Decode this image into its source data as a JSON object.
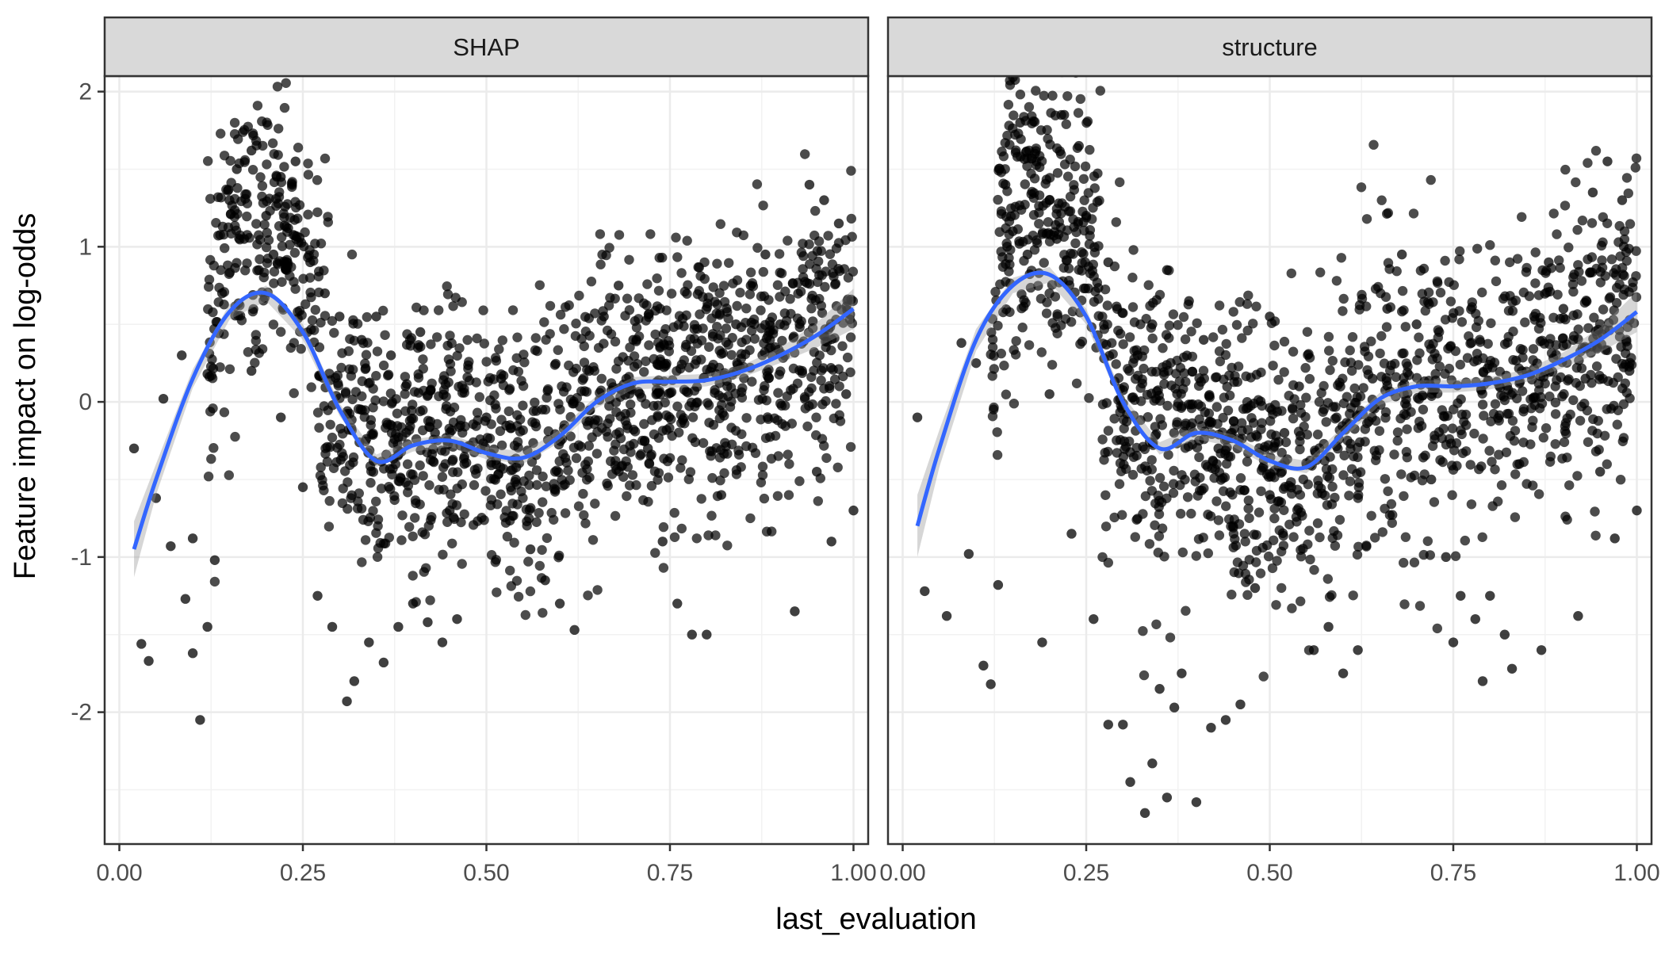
{
  "chart_data": {
    "type": "scatter",
    "xlabel": "last_evaluation",
    "ylabel": "Feature impact on log-odds",
    "xlim": [
      -0.02,
      1.02
    ],
    "ylim": [
      -2.85,
      2.1
    ],
    "x_ticks": [
      0.0,
      0.25,
      0.5,
      0.75,
      1.0
    ],
    "x_tick_labels": [
      "0.00",
      "0.25",
      "0.50",
      "0.75",
      "1.00"
    ],
    "y_ticks": [
      -2,
      -1,
      0,
      1,
      2
    ],
    "y_tick_labels": [
      "-2",
      "-1",
      "0",
      "1",
      "2"
    ],
    "grid": true,
    "point_color": "#000000",
    "smooth_color": "#3366FF",
    "band_color": "#999999",
    "strip_fill": "#D9D9D9",
    "panels": [
      {
        "strip_label": "SHAP",
        "smooth_x": [
          0.02,
          0.05,
          0.1,
          0.15,
          0.2,
          0.25,
          0.3,
          0.35,
          0.4,
          0.45,
          0.5,
          0.55,
          0.6,
          0.65,
          0.7,
          0.75,
          0.8,
          0.85,
          0.9,
          0.95,
          1.0
        ],
        "smooth_y": [
          -0.95,
          -0.5,
          0.15,
          0.58,
          0.7,
          0.45,
          -0.05,
          -0.38,
          -0.28,
          -0.25,
          -0.33,
          -0.36,
          -0.22,
          0.0,
          0.12,
          0.13,
          0.14,
          0.2,
          0.3,
          0.43,
          0.6
        ],
        "band_halfwidth": [
          0.18,
          0.1,
          0.06,
          0.05,
          0.05,
          0.05,
          0.04,
          0.04,
          0.04,
          0.04,
          0.04,
          0.04,
          0.04,
          0.04,
          0.04,
          0.04,
          0.04,
          0.04,
          0.05,
          0.08,
          0.13
        ],
        "points": [
          [
            0.02,
            -0.3
          ],
          [
            0.03,
            -1.56
          ],
          [
            0.04,
            -1.67
          ],
          [
            0.05,
            -0.62
          ],
          [
            0.06,
            0.02
          ],
          [
            0.07,
            -0.93
          ],
          [
            0.09,
            -1.27
          ],
          [
            0.1,
            -1.62
          ],
          [
            0.11,
            -2.05
          ],
          [
            0.12,
            -1.45
          ],
          [
            0.085,
            0.3
          ],
          [
            0.1,
            -0.88
          ],
          [
            0.13,
            -1.02
          ],
          [
            0.12,
            0.18
          ],
          [
            0.14,
            0.7
          ],
          [
            0.16,
            1.5
          ],
          [
            0.18,
            1.62
          ],
          [
            0.2,
            1.2
          ],
          [
            0.22,
            1.45
          ],
          [
            0.24,
            1.55
          ],
          [
            0.15,
            1.3
          ],
          [
            0.17,
            1.05
          ],
          [
            0.19,
            0.85
          ],
          [
            0.21,
            0.95
          ],
          [
            0.23,
            1.12
          ],
          [
            0.26,
            0.9
          ],
          [
            0.28,
            0.7
          ],
          [
            0.3,
            0.55
          ],
          [
            0.18,
            0.2
          ],
          [
            0.22,
            -0.1
          ],
          [
            0.25,
            -0.55
          ],
          [
            0.27,
            -1.25
          ],
          [
            0.29,
            -1.45
          ],
          [
            0.31,
            -1.93
          ],
          [
            0.32,
            -1.8
          ],
          [
            0.34,
            -1.55
          ],
          [
            0.36,
            -1.68
          ],
          [
            0.38,
            -1.45
          ],
          [
            0.4,
            -1.3
          ],
          [
            0.42,
            -1.42
          ],
          [
            0.44,
            -1.55
          ],
          [
            0.46,
            -1.4
          ],
          [
            0.33,
            0.4
          ],
          [
            0.35,
            0.55
          ],
          [
            0.37,
            0.3
          ],
          [
            0.39,
            0.1
          ],
          [
            0.41,
            0.45
          ],
          [
            0.43,
            -0.2
          ],
          [
            0.45,
            -0.7
          ],
          [
            0.47,
            -0.4
          ],
          [
            0.5,
            -0.1
          ],
          [
            0.52,
            0.15
          ],
          [
            0.54,
            -0.5
          ],
          [
            0.56,
            -0.95
          ],
          [
            0.58,
            -1.15
          ],
          [
            0.6,
            -1.3
          ],
          [
            0.62,
            -1.47
          ],
          [
            0.64,
            0.2
          ],
          [
            0.66,
            0.55
          ],
          [
            0.68,
            0.75
          ],
          [
            0.7,
            0.4
          ],
          [
            0.72,
            -0.3
          ],
          [
            0.74,
            -0.9
          ],
          [
            0.76,
            -1.3
          ],
          [
            0.78,
            -1.5
          ],
          [
            0.8,
            -1.5
          ],
          [
            0.82,
            -0.6
          ],
          [
            0.84,
            0.5
          ],
          [
            0.86,
            0.75
          ],
          [
            0.88,
            0.95
          ],
          [
            0.9,
            0.5
          ],
          [
            0.92,
            -1.35
          ],
          [
            0.94,
            1.4
          ],
          [
            0.96,
            1.3
          ],
          [
            0.98,
            1.15
          ],
          [
            0.99,
            0.05
          ],
          [
            1.0,
            -0.7
          ],
          [
            0.95,
            -0.45
          ],
          [
            0.97,
            -0.9
          ],
          [
            0.93,
            0.2
          ]
        ]
      },
      {
        "strip_label": "structure",
        "smooth_x": [
          0.02,
          0.05,
          0.1,
          0.15,
          0.2,
          0.25,
          0.3,
          0.35,
          0.4,
          0.45,
          0.5,
          0.55,
          0.6,
          0.65,
          0.7,
          0.75,
          0.8,
          0.85,
          0.9,
          0.95,
          1.0
        ],
        "smooth_y": [
          -0.8,
          -0.3,
          0.4,
          0.75,
          0.82,
          0.55,
          0.0,
          -0.3,
          -0.2,
          -0.25,
          -0.38,
          -0.42,
          -0.2,
          0.02,
          0.1,
          0.1,
          0.12,
          0.17,
          0.27,
          0.4,
          0.58
        ],
        "band_halfwidth": [
          0.2,
          0.12,
          0.07,
          0.05,
          0.05,
          0.05,
          0.04,
          0.04,
          0.04,
          0.04,
          0.04,
          0.04,
          0.04,
          0.04,
          0.04,
          0.04,
          0.04,
          0.04,
          0.05,
          0.08,
          0.13
        ],
        "points": [
          [
            0.02,
            -0.1
          ],
          [
            0.03,
            -1.22
          ],
          [
            0.06,
            -1.38
          ],
          [
            0.09,
            -0.98
          ],
          [
            0.11,
            -1.7
          ],
          [
            0.12,
            -1.82
          ],
          [
            0.13,
            -1.18
          ],
          [
            0.08,
            0.38
          ],
          [
            0.1,
            0.25
          ],
          [
            0.14,
            1.4
          ],
          [
            0.16,
            1.8
          ],
          [
            0.18,
            1.6
          ],
          [
            0.22,
            1.85
          ],
          [
            0.2,
            1.3
          ],
          [
            0.24,
            1.65
          ],
          [
            0.15,
            1.1
          ],
          [
            0.17,
            0.95
          ],
          [
            0.21,
            1.05
          ],
          [
            0.25,
            1.2
          ],
          [
            0.28,
            0.9
          ],
          [
            0.19,
            -1.55
          ],
          [
            0.23,
            -0.85
          ],
          [
            0.26,
            -1.4
          ],
          [
            0.28,
            -2.08
          ],
          [
            0.3,
            -2.08
          ],
          [
            0.31,
            -2.45
          ],
          [
            0.33,
            -2.65
          ],
          [
            0.34,
            -2.33
          ],
          [
            0.36,
            -2.55
          ],
          [
            0.4,
            -2.58
          ],
          [
            0.35,
            -1.85
          ],
          [
            0.37,
            -1.97
          ],
          [
            0.38,
            -1.75
          ],
          [
            0.42,
            -2.1
          ],
          [
            0.44,
            -2.05
          ],
          [
            0.46,
            -1.95
          ],
          [
            0.32,
            0.3
          ],
          [
            0.34,
            0.5
          ],
          [
            0.36,
            0.85
          ],
          [
            0.39,
            0.65
          ],
          [
            0.41,
            0.4
          ],
          [
            0.43,
            -0.3
          ],
          [
            0.45,
            -0.8
          ],
          [
            0.48,
            -1.2
          ],
          [
            0.5,
            -0.6
          ],
          [
            0.52,
            -0.2
          ],
          [
            0.54,
            0.1
          ],
          [
            0.56,
            -1.6
          ],
          [
            0.58,
            -1.45
          ],
          [
            0.6,
            -1.75
          ],
          [
            0.62,
            -1.6
          ],
          [
            0.64,
            0.15
          ],
          [
            0.66,
            0.6
          ],
          [
            0.68,
            0.95
          ],
          [
            0.7,
            0.5
          ],
          [
            0.72,
            -0.5
          ],
          [
            0.74,
            -1.0
          ],
          [
            0.76,
            -1.25
          ],
          [
            0.78,
            -1.4
          ],
          [
            0.8,
            -1.25
          ],
          [
            0.82,
            -1.5
          ],
          [
            0.84,
            -0.4
          ],
          [
            0.86,
            0.55
          ],
          [
            0.88,
            0.9
          ],
          [
            0.9,
            0.6
          ],
          [
            0.92,
            -1.38
          ],
          [
            0.94,
            1.35
          ],
          [
            0.96,
            1.55
          ],
          [
            0.98,
            1.3
          ],
          [
            0.99,
            0.2
          ],
          [
            1.0,
            -0.7
          ],
          [
            0.95,
            -0.45
          ],
          [
            0.97,
            -0.88
          ],
          [
            0.93,
            0.15
          ],
          [
            0.87,
            -1.6
          ],
          [
            0.79,
            -1.8
          ],
          [
            0.83,
            -1.72
          ],
          [
            0.75,
            -1.55
          ],
          [
            0.5,
            0.55
          ],
          [
            0.2,
            0.05
          ]
        ]
      }
    ]
  }
}
